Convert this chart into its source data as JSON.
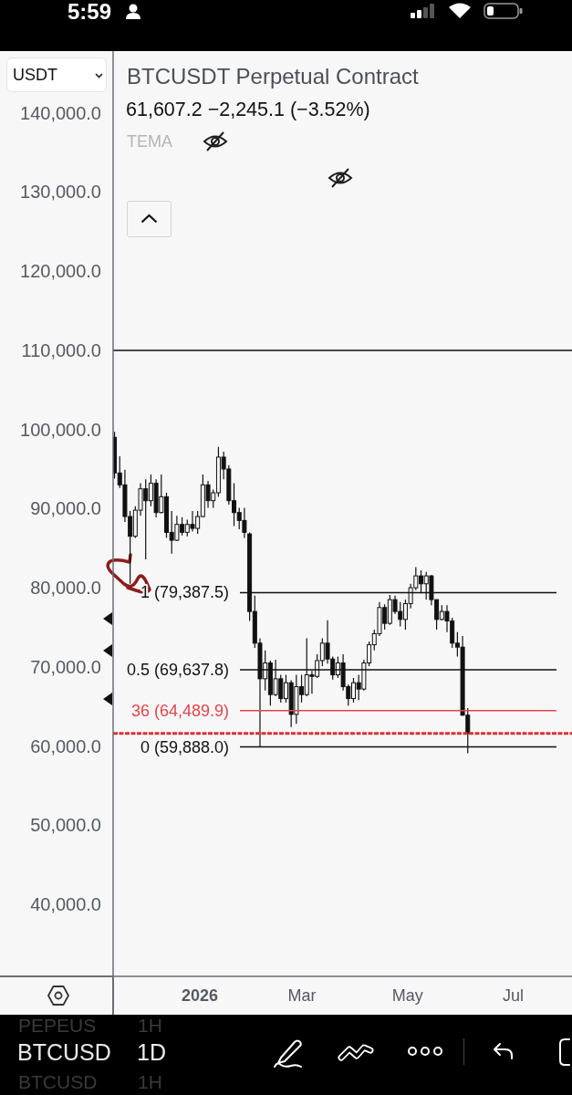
{
  "chart_data": {
    "type": "candlestick",
    "title": "BTCUSDT Perpetual Contract",
    "subtitle": "61,607.2 −2,245.1 (−3.52%)",
    "annotations": [
      "5:59",
      "USDT",
      "TEMA",
      "PEPEUS",
      "1H",
      "BTCUSD",
      "1D",
      "BTCUSD",
      "1H"
    ],
    "color": "#111111",
    "x": [
      "2025-11-13",
      "2025-11-16",
      "2025-11-19",
      "2025-11-22",
      "2025-11-25",
      "2025-11-28",
      "2025-12-01",
      "2025-12-04",
      "2025-12-07",
      "2025-12-10",
      "2025-12-13",
      "2025-12-16",
      "2025-12-19",
      "2025-12-22",
      "2025-12-25",
      "2025-12-28",
      "2025-12-31",
      "2026-01-03",
      "2026-01-06",
      "2026-01-09",
      "2026-01-12",
      "2026-01-15",
      "2026-01-18",
      "2026-01-21",
      "2026-01-24",
      "2026-01-27",
      "2026-01-30",
      "2026-02-02",
      "2026-02-05",
      "2026-02-08",
      "2026-02-11",
      "2026-02-14",
      "2026-02-17",
      "2026-02-20",
      "2026-02-23",
      "2026-02-26",
      "2026-03-01",
      "2026-03-04",
      "2026-03-07",
      "2026-03-10",
      "2026-03-13",
      "2026-03-16",
      "2026-03-19",
      "2026-03-22",
      "2026-03-25",
      "2026-03-28",
      "2026-03-31",
      "2026-04-03",
      "2026-04-06",
      "2026-04-09",
      "2026-04-12",
      "2026-04-15",
      "2026-04-18",
      "2026-04-21",
      "2026-04-24",
      "2026-04-27",
      "2026-04-30",
      "2026-05-03",
      "2026-05-06",
      "2026-05-09",
      "2026-05-12",
      "2026-05-15",
      "2026-05-18",
      "2026-05-21",
      "2026-05-24",
      "2026-05-27",
      "2026-05-30",
      "2026-06-02",
      "2026-06-05"
    ],
    "ohlc": [
      [
        99000,
        99700,
        93800,
        94500
      ],
      [
        94500,
        96600,
        92600,
        93000
      ],
      [
        93000,
        94900,
        88300,
        89000
      ],
      [
        89000,
        89700,
        80500,
        86500
      ],
      [
        86500,
        90300,
        86300,
        89800
      ],
      [
        89800,
        93200,
        89100,
        92500
      ],
      [
        92500,
        93700,
        83600,
        91000
      ],
      [
        91000,
        94300,
        90300,
        93200
      ],
      [
        93200,
        93700,
        88900,
        89500
      ],
      [
        89500,
        94300,
        89400,
        91500
      ],
      [
        91500,
        92000,
        86300,
        87000
      ],
      [
        87000,
        89700,
        84300,
        86000
      ],
      [
        86000,
        89100,
        85900,
        88000
      ],
      [
        88000,
        88900,
        86600,
        87000
      ],
      [
        87000,
        88600,
        86500,
        88000
      ],
      [
        88000,
        89700,
        87100,
        87500
      ],
      [
        87500,
        89700,
        86800,
        89000
      ],
      [
        89000,
        94300,
        88900,
        93000
      ],
      [
        93000,
        93500,
        90100,
        91000
      ],
      [
        91000,
        92400,
        90100,
        92000
      ],
      [
        92000,
        97800,
        91500,
        96500
      ],
      [
        96500,
        97200,
        93700,
        95000
      ],
      [
        95000,
        95500,
        90500,
        91000
      ],
      [
        91000,
        93200,
        87800,
        89500
      ],
      [
        89500,
        90100,
        87400,
        88500
      ],
      [
        88500,
        90100,
        86300,
        87000
      ],
      [
        86800,
        87000,
        75800,
        77000
      ],
      [
        77000,
        79000,
        72400,
        73000
      ],
      [
        73000,
        73600,
        59888,
        68500
      ],
      [
        68500,
        72100,
        67000,
        70500
      ],
      [
        70500,
        70800,
        65100,
        66500
      ],
      [
        66500,
        70900,
        66300,
        68500
      ],
      [
        68500,
        69000,
        65500,
        66000
      ],
      [
        66000,
        69000,
        65500,
        68000
      ],
      [
        68000,
        68300,
        62400,
        64000
      ],
      [
        64000,
        69000,
        62800,
        67500
      ],
      [
        67500,
        69000,
        65500,
        66500
      ],
      [
        66500,
        73600,
        66300,
        69000
      ],
      [
        69000,
        69500,
        66600,
        68800
      ],
      [
        68800,
        71600,
        68600,
        70800
      ],
      [
        70800,
        73600,
        70100,
        73000
      ],
      [
        73000,
        75900,
        70400,
        71000
      ],
      [
        71000,
        71300,
        68400,
        69000
      ],
      [
        69000,
        71300,
        68600,
        70500
      ],
      [
        70500,
        71600,
        67000,
        67500
      ],
      [
        67500,
        67800,
        65100,
        66000
      ],
      [
        66000,
        68600,
        65500,
        68000
      ],
      [
        68000,
        69000,
        65800,
        67200
      ],
      [
        67200,
        70900,
        67000,
        70500
      ],
      [
        70500,
        73200,
        70100,
        72800
      ],
      [
        72800,
        74700,
        72100,
        74200
      ],
      [
        74200,
        78200,
        73900,
        77500
      ],
      [
        77500,
        77900,
        74700,
        75500
      ],
      [
        75500,
        79100,
        75300,
        78500
      ],
      [
        78500,
        79000,
        76700,
        77000
      ],
      [
        77000,
        78200,
        75100,
        76000
      ],
      [
        76000,
        78500,
        74700,
        78000
      ],
      [
        78000,
        80500,
        77400,
        80000
      ],
      [
        80000,
        82600,
        79700,
        81500
      ],
      [
        81500,
        82200,
        79300,
        80500
      ],
      [
        80500,
        82000,
        78500,
        81500
      ],
      [
        81500,
        81600,
        77800,
        78500
      ],
      [
        78500,
        78500,
        74700,
        76000
      ],
      [
        76000,
        77800,
        75900,
        77000
      ],
      [
        77000,
        77800,
        74400,
        75800
      ],
      [
        75800,
        76200,
        72400,
        73000
      ],
      [
        73000,
        74400,
        71300,
        72500
      ],
      [
        72500,
        73900,
        63800,
        63900
      ],
      [
        63900,
        64800,
        59100,
        61607.2
      ]
    ],
    "xlim": [
      "2025-11-12",
      "2026-08-04"
    ],
    "xticks": [
      {
        "value": "2026-01-01",
        "label": "2026"
      },
      {
        "value": "2026-03-01",
        "label": "Mar"
      },
      {
        "value": "2026-05-01",
        "label": "May"
      },
      {
        "value": "2026-07-01",
        "label": "Jul"
      }
    ],
    "ylim": [
      30900,
      147800
    ],
    "yticks": [
      {
        "value": 40000,
        "label": "40,000.0"
      },
      {
        "value": 50000,
        "label": "50,000.0"
      },
      {
        "value": 60000,
        "label": "60,000.0"
      },
      {
        "value": 70000,
        "label": "70,000.0"
      },
      {
        "value": 80000,
        "label": "80,000.0"
      },
      {
        "value": 90000,
        "label": "90,000.0"
      },
      {
        "value": 100000,
        "label": "100,000.0"
      },
      {
        "value": 110000,
        "label": "110,000.0"
      },
      {
        "value": 120000,
        "label": "120,000.0"
      },
      {
        "value": 130000,
        "label": "130,000.0"
      },
      {
        "value": 140000,
        "label": "140,000.0"
      }
    ],
    "ref_lines": [
      {
        "axis": "y",
        "value": 110000,
        "color": "#111111"
      },
      {
        "axis": "y",
        "value": 79387.5,
        "label": "1 (79,387.5)",
        "color": "#111111"
      },
      {
        "axis": "y",
        "value": 69637.8,
        "label": "0.5 (69,637.8)",
        "color": "#111111"
      },
      {
        "axis": "y",
        "value": 64489.9,
        "label": "36 (64,489.9)",
        "color": "#e0454a"
      },
      {
        "axis": "y",
        "value": 61607.2,
        "color": "#d6333a",
        "line_style": "dashed"
      },
      {
        "axis": "y",
        "value": 59888,
        "label": "0 (59,888.0)",
        "color": "#111111"
      }
    ]
  }
}
